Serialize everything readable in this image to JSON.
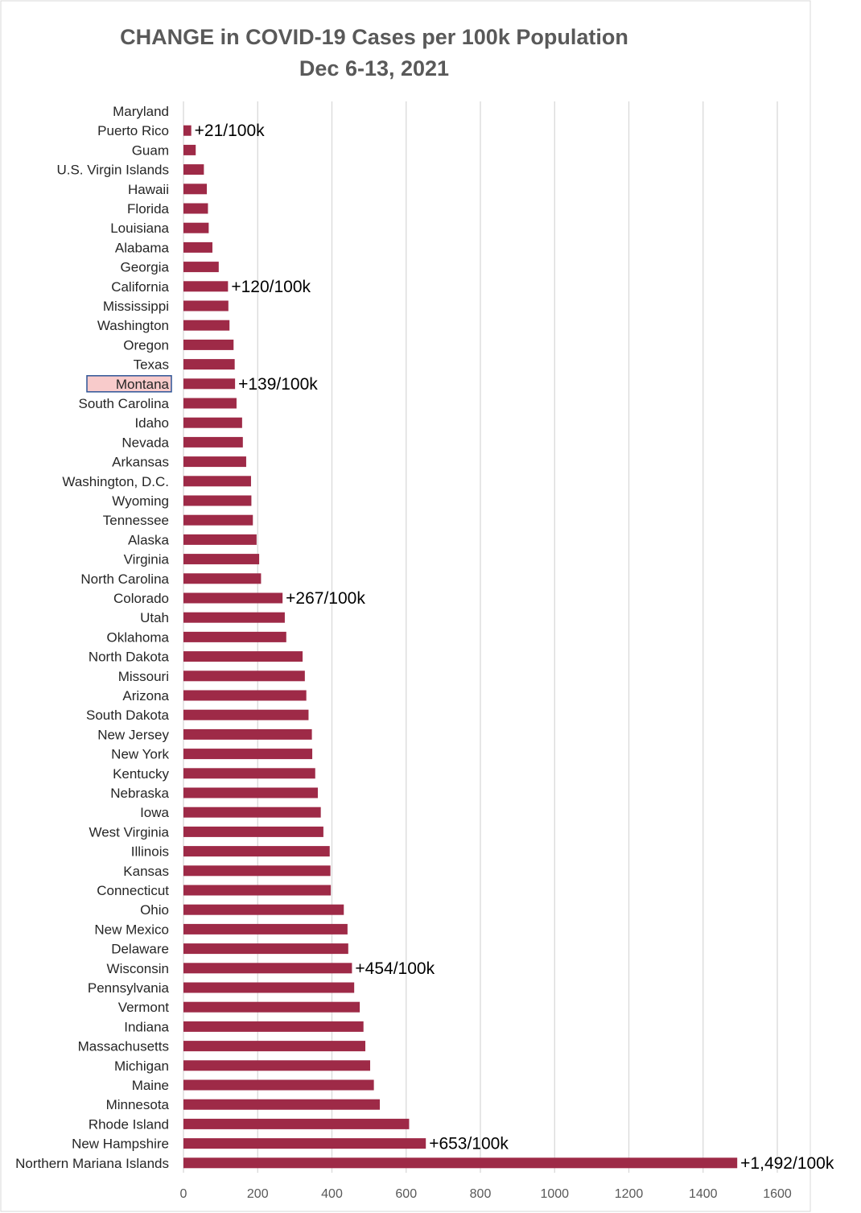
{
  "chart_data": {
    "type": "bar",
    "orientation": "horizontal",
    "title": "CHANGE in COVID-19 Cases per 100k Population",
    "subtitle": "Dec 6-13, 2021",
    "xlabel": "",
    "ylabel": "",
    "xlim": [
      0,
      1600
    ],
    "x_ticks": [
      0,
      200,
      400,
      600,
      800,
      1000,
      1200,
      1400,
      1600
    ],
    "x_tick_labels": [
      "0",
      "200",
      "400",
      "600",
      "800",
      "1000",
      "1200",
      "1400",
      "1600"
    ],
    "grid": "vertical",
    "bar_color": "#9E2A47",
    "highlight_fill": "#F8CBCB",
    "highlight_border": "#2F5597",
    "highlighted_category": "Montana",
    "categories": [
      "Maryland",
      "Puerto Rico",
      "Guam",
      "U.S. Virgin Islands",
      "Hawaii",
      "Florida",
      "Louisiana",
      "Alabama",
      "Georgia",
      "California",
      "Mississippi",
      "Washington",
      "Oregon",
      "Texas",
      "Montana",
      "South Carolina",
      "Idaho",
      "Nevada",
      "Arkansas",
      "Washington, D.C.",
      "Wyoming",
      "Tennessee",
      "Alaska",
      "Virginia",
      "North Carolina",
      "Colorado",
      "Utah",
      "Oklahoma",
      "North Dakota",
      "Missouri",
      "Arizona",
      "South Dakota",
      "New Jersey",
      "New York",
      "Kentucky",
      "Nebraska",
      "Iowa",
      "West Virginia",
      "Illinois",
      "Kansas",
      "Connecticut",
      "Ohio",
      "New Mexico",
      "Delaware",
      "Wisconsin",
      "Pennsylvania",
      "Vermont",
      "Indiana",
      "Massachusetts",
      "Michigan",
      "Maine",
      "Minnesota",
      "Rhode Island",
      "New Hampshire",
      "Northern Mariana Islands"
    ],
    "values": [
      0,
      21,
      33,
      55,
      63,
      66,
      68,
      78,
      95,
      120,
      121,
      124,
      135,
      138,
      139,
      143,
      158,
      160,
      169,
      182,
      183,
      187,
      197,
      204,
      209,
      267,
      273,
      277,
      321,
      327,
      331,
      337,
      346,
      347,
      355,
      362,
      370,
      377,
      394,
      396,
      397,
      432,
      442,
      444,
      454,
      460,
      475,
      485,
      490,
      503,
      513,
      529,
      608,
      653,
      1492
    ],
    "annotations": [
      {
        "category": "Puerto Rico",
        "text": "+21/100k"
      },
      {
        "category": "California",
        "text": "+120/100k"
      },
      {
        "category": "Montana",
        "text": "+139/100k"
      },
      {
        "category": "Colorado",
        "text": "+267/100k"
      },
      {
        "category": "Wisconsin",
        "text": "+454/100k"
      },
      {
        "category": "New Hampshire",
        "text": "+653/100k"
      },
      {
        "category": "Northern Mariana Islands",
        "text": "+1,492/100k"
      }
    ]
  }
}
